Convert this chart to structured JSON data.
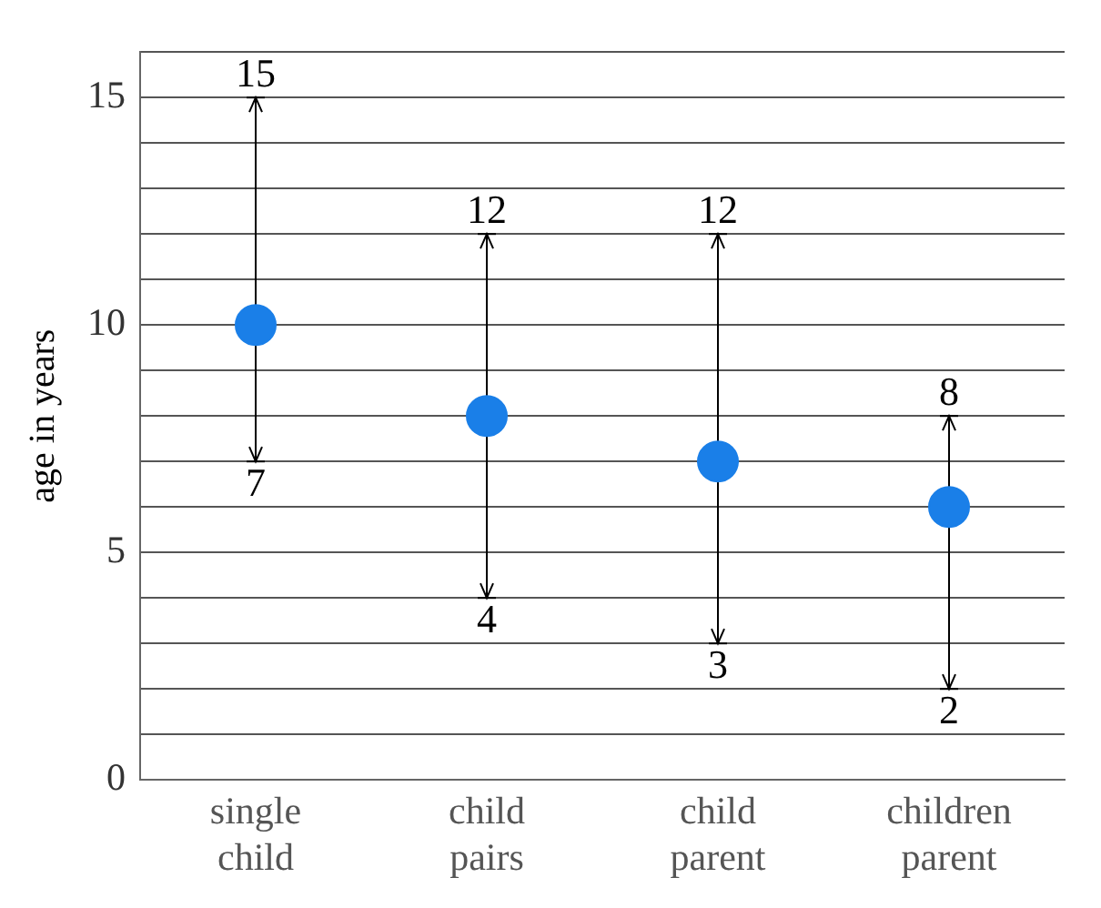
{
  "chart_data": {
    "type": "scatter",
    "ylabel": "age in years",
    "categories": [
      "single child",
      "child pairs",
      "child parent",
      "children parent"
    ],
    "values": [
      10,
      8,
      7,
      6
    ],
    "errors": [
      [
        7,
        15
      ],
      [
        4,
        12
      ],
      [
        3,
        12
      ],
      [
        2,
        8
      ]
    ],
    "color": "#1a7fe8",
    "marker": "circle",
    "ylim": [
      0,
      16
    ],
    "yticks": [
      0,
      {
        "value": 1,
        "label": null
      },
      {
        "value": 2,
        "label": null
      },
      {
        "value": 3,
        "label": null
      },
      {
        "value": 4,
        "label": null
      },
      5,
      {
        "value": 6,
        "label": null
      },
      {
        "value": 7,
        "label": null
      },
      {
        "value": 8,
        "label": null
      },
      {
        "value": 9,
        "label": null
      },
      10,
      {
        "value": 11,
        "label": null
      },
      {
        "value": 12,
        "label": null
      },
      {
        "value": 13,
        "label": null
      },
      {
        "value": 14,
        "label": null
      },
      15,
      {
        "value": 16,
        "label": null
      }
    ],
    "grid": "y",
    "legend": false,
    "annotations": [
      {
        "text": "15",
        "x": "single child",
        "y": 15
      },
      {
        "text": "7",
        "x": "single child",
        "y": 7
      },
      {
        "text": "12",
        "x": "child pairs",
        "y": 12
      },
      {
        "text": "4",
        "x": "child pairs",
        "y": 4
      },
      {
        "text": "12",
        "x": "child parent",
        "y": 12
      },
      {
        "text": "3",
        "x": "child parent",
        "y": 3
      },
      {
        "text": "8",
        "x": "children parent",
        "y": 8
      },
      {
        "text": "2",
        "x": "children parent",
        "y": 2
      }
    ]
  }
}
